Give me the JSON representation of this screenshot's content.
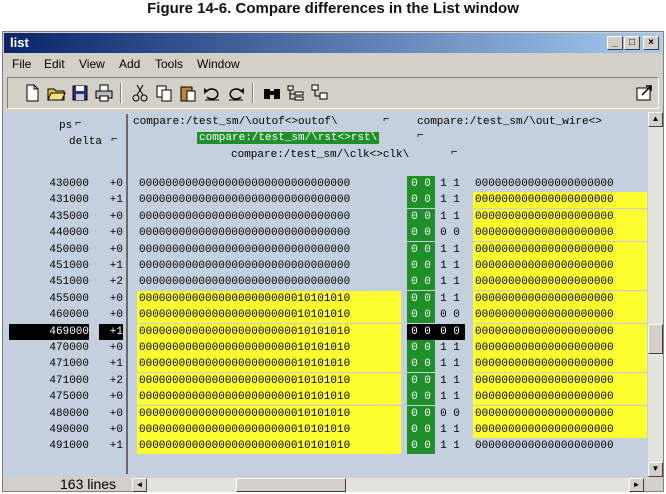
{
  "figure_caption": "Figure 14-6. Compare differences in the List window",
  "window": {
    "title": "list",
    "buttons": {
      "minimize": "_",
      "maximize": "□",
      "close": "×"
    }
  },
  "menu": [
    "File",
    "Edit",
    "View",
    "Add",
    "Tools",
    "Window"
  ],
  "toolbar_icons": [
    "new-file-icon",
    "open-folder-icon",
    "save-icon",
    "print-icon",
    "cut-icon",
    "copy-icon",
    "paste-icon",
    "undo-icon",
    "redo-icon",
    "find-icon",
    "expand-icon",
    "collapse-icon",
    "undock-icon"
  ],
  "headers": {
    "ps": "ps",
    "delta": "delta",
    "signal_outof": "compare:/test_sm/\\outof<>outof\\",
    "signal_out_wire": "compare:/test_sm/\\out_wire<>",
    "signal_rst": "compare:/test_sm/\\rst<>rst\\",
    "signal_clk": "compare:/test_sm/\\clk<>clk\\"
  },
  "colors": {
    "diff_highlight": "#ffff30",
    "compare_green": "#1f8f2a",
    "selection": "#000000"
  },
  "rows": [
    {
      "time": "430000",
      "delta": "+0",
      "wire": "00000000000000000000000000000000",
      "rst": "0 0",
      "clk": "1 1",
      "out": "000000000000000000000",
      "wire_diff": false,
      "out_diff": false,
      "selected": false
    },
    {
      "time": "431000",
      "delta": "+1",
      "wire": "00000000000000000000000000000000",
      "rst": "0 0",
      "clk": "1 1",
      "out": "000000000000000000000",
      "wire_diff": false,
      "out_diff": true,
      "selected": false
    },
    {
      "time": "435000",
      "delta": "+0",
      "wire": "00000000000000000000000000000000",
      "rst": "0 0",
      "clk": "1 1",
      "out": "000000000000000000000",
      "wire_diff": false,
      "out_diff": true,
      "selected": false
    },
    {
      "time": "440000",
      "delta": "+0",
      "wire": "00000000000000000000000000000000",
      "rst": "0 0",
      "clk": "0 0",
      "out": "000000000000000000000",
      "wire_diff": false,
      "out_diff": true,
      "selected": false
    },
    {
      "time": "450000",
      "delta": "+0",
      "wire": "00000000000000000000000000000000",
      "rst": "0 0",
      "clk": "1 1",
      "out": "000000000000000000000",
      "wire_diff": false,
      "out_diff": true,
      "selected": false
    },
    {
      "time": "451000",
      "delta": "+1",
      "wire": "00000000000000000000000000000000",
      "rst": "0 0",
      "clk": "1 1",
      "out": "000000000000000000000",
      "wire_diff": false,
      "out_diff": true,
      "selected": false
    },
    {
      "time": "451000",
      "delta": "+2",
      "wire": "00000000000000000000000000000000",
      "rst": "0 0",
      "clk": "1 1",
      "out": "000000000000000000000",
      "wire_diff": false,
      "out_diff": true,
      "selected": false
    },
    {
      "time": "455000",
      "delta": "+0",
      "wire": "00000000000000000000000010101010",
      "rst": "0 0",
      "clk": "1 1",
      "out": "000000000000000000000",
      "wire_diff": true,
      "out_diff": true,
      "selected": false
    },
    {
      "time": "460000",
      "delta": "+0",
      "wire": "00000000000000000000000010101010",
      "rst": "0 0",
      "clk": "0 0",
      "out": "000000000000000000000",
      "wire_diff": true,
      "out_diff": true,
      "selected": false
    },
    {
      "time": "469000",
      "delta": "+1",
      "wire": "00000000000000000000000010101010",
      "rst": "0 0",
      "clk": "0 0",
      "out": "000000000000000000000",
      "wire_diff": true,
      "out_diff": true,
      "selected": true
    },
    {
      "time": "470000",
      "delta": "+0",
      "wire": "00000000000000000000000010101010",
      "rst": "0 0",
      "clk": "1 1",
      "out": "000000000000000000000",
      "wire_diff": true,
      "out_diff": true,
      "selected": false
    },
    {
      "time": "471000",
      "delta": "+1",
      "wire": "00000000000000000000000010101010",
      "rst": "0 0",
      "clk": "1 1",
      "out": "000000000000000000000",
      "wire_diff": true,
      "out_diff": true,
      "selected": false
    },
    {
      "time": "471000",
      "delta": "+2",
      "wire": "00000000000000000000000010101010",
      "rst": "0 0",
      "clk": "1 1",
      "out": "000000000000000000000",
      "wire_diff": true,
      "out_diff": true,
      "selected": false
    },
    {
      "time": "475000",
      "delta": "+0",
      "wire": "00000000000000000000000010101010",
      "rst": "0 0",
      "clk": "1 1",
      "out": "000000000000000000000",
      "wire_diff": true,
      "out_diff": true,
      "selected": false
    },
    {
      "time": "480000",
      "delta": "+0",
      "wire": "00000000000000000000000010101010",
      "rst": "0 0",
      "clk": "0 0",
      "out": "000000000000000000000",
      "wire_diff": true,
      "out_diff": true,
      "selected": false
    },
    {
      "time": "490000",
      "delta": "+0",
      "wire": "00000000000000000000000010101010",
      "rst": "0 0",
      "clk": "1 1",
      "out": "000000000000000000000",
      "wire_diff": true,
      "out_diff": true,
      "selected": false
    },
    {
      "time": "491000",
      "delta": "+1",
      "wire": "00000000000000000000000010101010",
      "rst": "0 0",
      "clk": "1 1",
      "out": "000000000000000000000",
      "wire_diff": true,
      "out_diff": false,
      "selected": false
    }
  ],
  "status": {
    "line_count": "163 lines"
  }
}
